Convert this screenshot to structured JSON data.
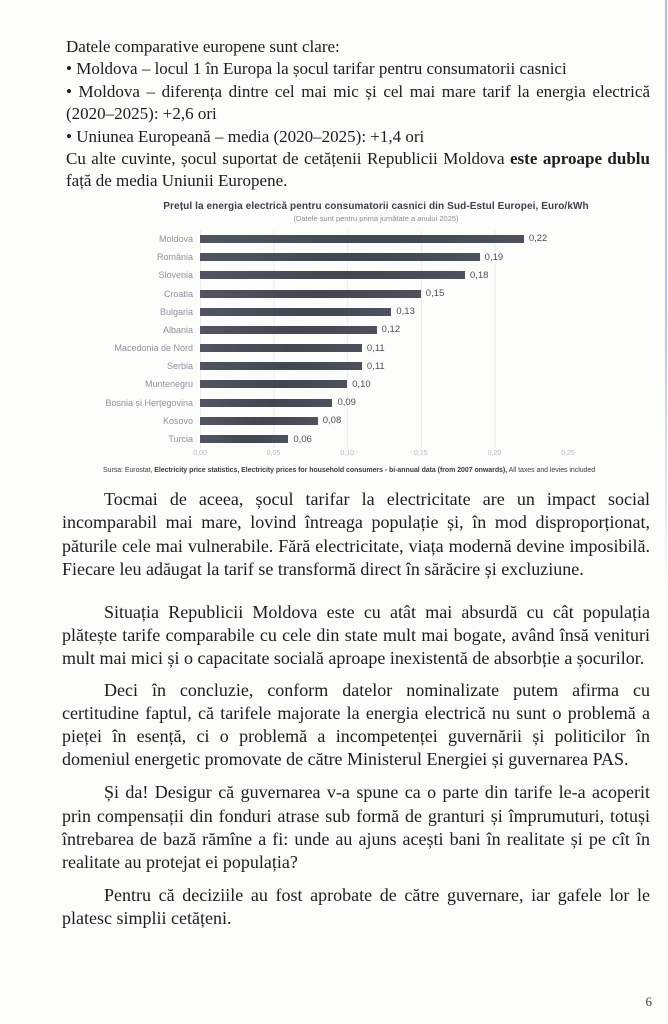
{
  "page": {
    "number": "6"
  },
  "intro": {
    "line1": "Datele comparative europene sunt clare:",
    "bullets": [
      "• Moldova – locul 1 în Europa la șocul tarifar pentru consumatorii casnici",
      "• Moldova – diferența dintre cel mai mic și cel mai mare tarif la energia electrică (2020–2025): +2,6 ori",
      "• Uniunea Europeană – media (2020–2025): +1,4 ori"
    ],
    "conclusion_prefix": "Cu alte cuvinte, șocul suportat de cetățenii Republicii Moldova ",
    "conclusion_bold": "este aproape dublu",
    "conclusion_suffix": " față de media Uniunii Europene."
  },
  "chart_data": {
    "type": "bar",
    "orientation": "horizontal",
    "title": "Prețul la energia electrică pentru consumatorii casnici din Sud-Estul Europei, Euro/kWh",
    "subtitle": "(Datele sunt pentru prima jumătate a anului 2025)",
    "categories": [
      "Moldova",
      "România",
      "Slovenia",
      "Croatia",
      "Bulgaria",
      "Albania",
      "Macedonia de Nord",
      "Serbia",
      "Muntenegru",
      "Bosnia și Herțegovina",
      "Kosovo",
      "Turcia"
    ],
    "values": [
      0.22,
      0.19,
      0.18,
      0.15,
      0.13,
      0.12,
      0.11,
      0.11,
      0.1,
      0.09,
      0.08,
      0.06
    ],
    "value_labels": [
      "0,22",
      "0,19",
      "0,18",
      "0,15",
      "0,13",
      "0,12",
      "0,11",
      "0,11",
      "0,10",
      "0,09",
      "0,08",
      "0,06"
    ],
    "xlabel": "",
    "ylabel": "",
    "xlim": [
      0,
      0.25
    ],
    "x_ticks": [
      "0,00",
      "0,05",
      "0,10",
      "0,15",
      "0,20",
      "0,25"
    ],
    "grid": "faint-vertical",
    "legend": "none",
    "bar_color": "#4a4e58",
    "source_prefix": "Sursa: Eurostat, ",
    "source_bold": "Electricity price statistics, Electricity prices for household consumers - bi-annual data (from 2007 onwards),",
    "source_suffix": " All taxes and levies included"
  },
  "paragraphs": [
    "Tocmai de aceea, șocul tarifar la electricitate are un impact social incomparabil mai mare, lovind întreaga populație și, în mod disproporționat, păturile cele mai vulnerabile. Fără electricitate, viața modernă devine imposibilă. Fiecare leu adăugat la tarif se transformă direct în sărăcire și excluziune.",
    "Situația Republicii Moldova este cu atât mai absurdă cu cât populația plătește tarife comparabile cu cele din state mult mai bogate, având însă venituri mult mai mici și o capacitate socială aproape inexistentă de absorbție a șocurilor.",
    "Deci în concluzie, conform datelor nominalizate putem afirma cu certitudine faptul, că tarifele majorate la energia electrică nu sunt o problemă a pieței în esență, ci o problemă a incompetenței guvernării și politicilor în domeniul energetic promovate de către Ministerul Energiei și guvernarea PAS.",
    "Și da! Desigur că guvernarea v-a spune ca o parte din tarife le-a acoperit prin compensații din fonduri atrase sub formă de granturi și împrumuturi, totuși întrebarea de bază rămîne a fi: unde au ajuns acești bani în realitate și pe cît în realitate au protejat ei populația?",
    "Pentru că deciziile au fost aprobate de către guvernare, iar gafele lor le platesc simplii cetățeni."
  ]
}
